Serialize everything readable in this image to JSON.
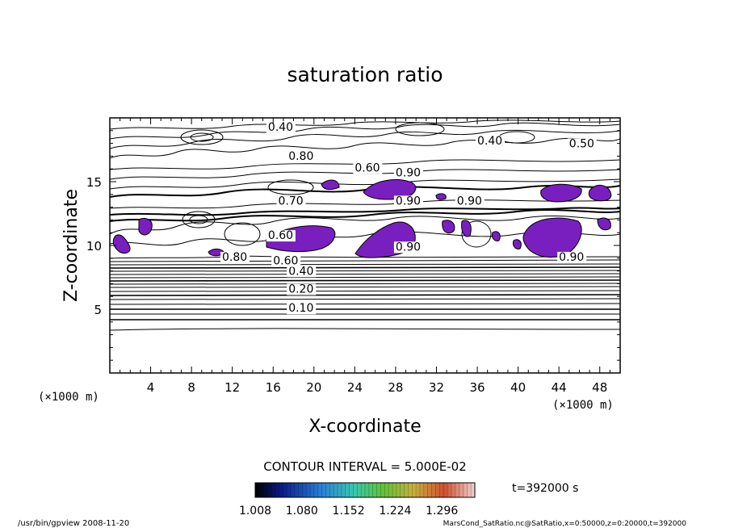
{
  "chart_data": {
    "type": "contour",
    "title": "saturation ratio",
    "xlabel": "X-coordinate",
    "ylabel": "Z-coordinate",
    "x_unit": "(×1000 m)",
    "z_unit": "(×1000 m)",
    "xlim": [
      0,
      50
    ],
    "ylim": [
      0,
      20
    ],
    "x_ticks": [
      "4",
      "8",
      "12",
      "16",
      "20",
      "24",
      "28",
      "32",
      "36",
      "40",
      "44",
      "48"
    ],
    "y_ticks": [
      "5",
      "10",
      "15"
    ],
    "contour_labels": [
      {
        "text": "0.10",
        "x": 17.5,
        "z": 4.8
      },
      {
        "text": "0.20",
        "x": 17.5,
        "z": 6.3
      },
      {
        "text": "0.40",
        "x": 17.5,
        "z": 7.7
      },
      {
        "text": "0.60",
        "x": 16.0,
        "z": 8.5
      },
      {
        "text": "0.80",
        "x": 11.0,
        "z": 8.8
      },
      {
        "text": "0.60",
        "x": 15.5,
        "z": 10.5
      },
      {
        "text": "0.70",
        "x": 16.5,
        "z": 13.2
      },
      {
        "text": "0.80",
        "x": 17.5,
        "z": 16.7
      },
      {
        "text": "0.60",
        "x": 24.0,
        "z": 15.8
      },
      {
        "text": "0.90",
        "x": 28.0,
        "z": 15.4
      },
      {
        "text": "0.90",
        "x": 28.0,
        "z": 13.2
      },
      {
        "text": "0.90",
        "x": 34.0,
        "z": 13.2
      },
      {
        "text": "0.90",
        "x": 28.0,
        "z": 9.6
      },
      {
        "text": "0.40",
        "x": 15.5,
        "z": 19.0
      },
      {
        "text": "0.40",
        "x": 36.0,
        "z": 17.9
      },
      {
        "text": "0.50",
        "x": 45.0,
        "z": 17.7
      },
      {
        "text": "0.90",
        "x": 44.0,
        "z": 8.8
      }
    ],
    "filled_levels_note": "purple shaded regions: saturation ratio >= 1.0",
    "contour_interval_text": "CONTOUR INTERVAL = 5.000E-02",
    "colorbar": {
      "ticks": [
        "1.008",
        "1.080",
        "1.152",
        "1.224",
        "1.296"
      ],
      "range": [
        1.008,
        1.296
      ]
    },
    "time_label": "t=392000  s"
  },
  "footer": {
    "left": "/usr/bin/gpview   2008-11-20",
    "right": "MarsCond_SatRatio.nc@SatRatio,x=0:50000,z=0:20000,t=392000"
  },
  "colors": {
    "fill": "#7a1fbf",
    "line": "#000000"
  }
}
